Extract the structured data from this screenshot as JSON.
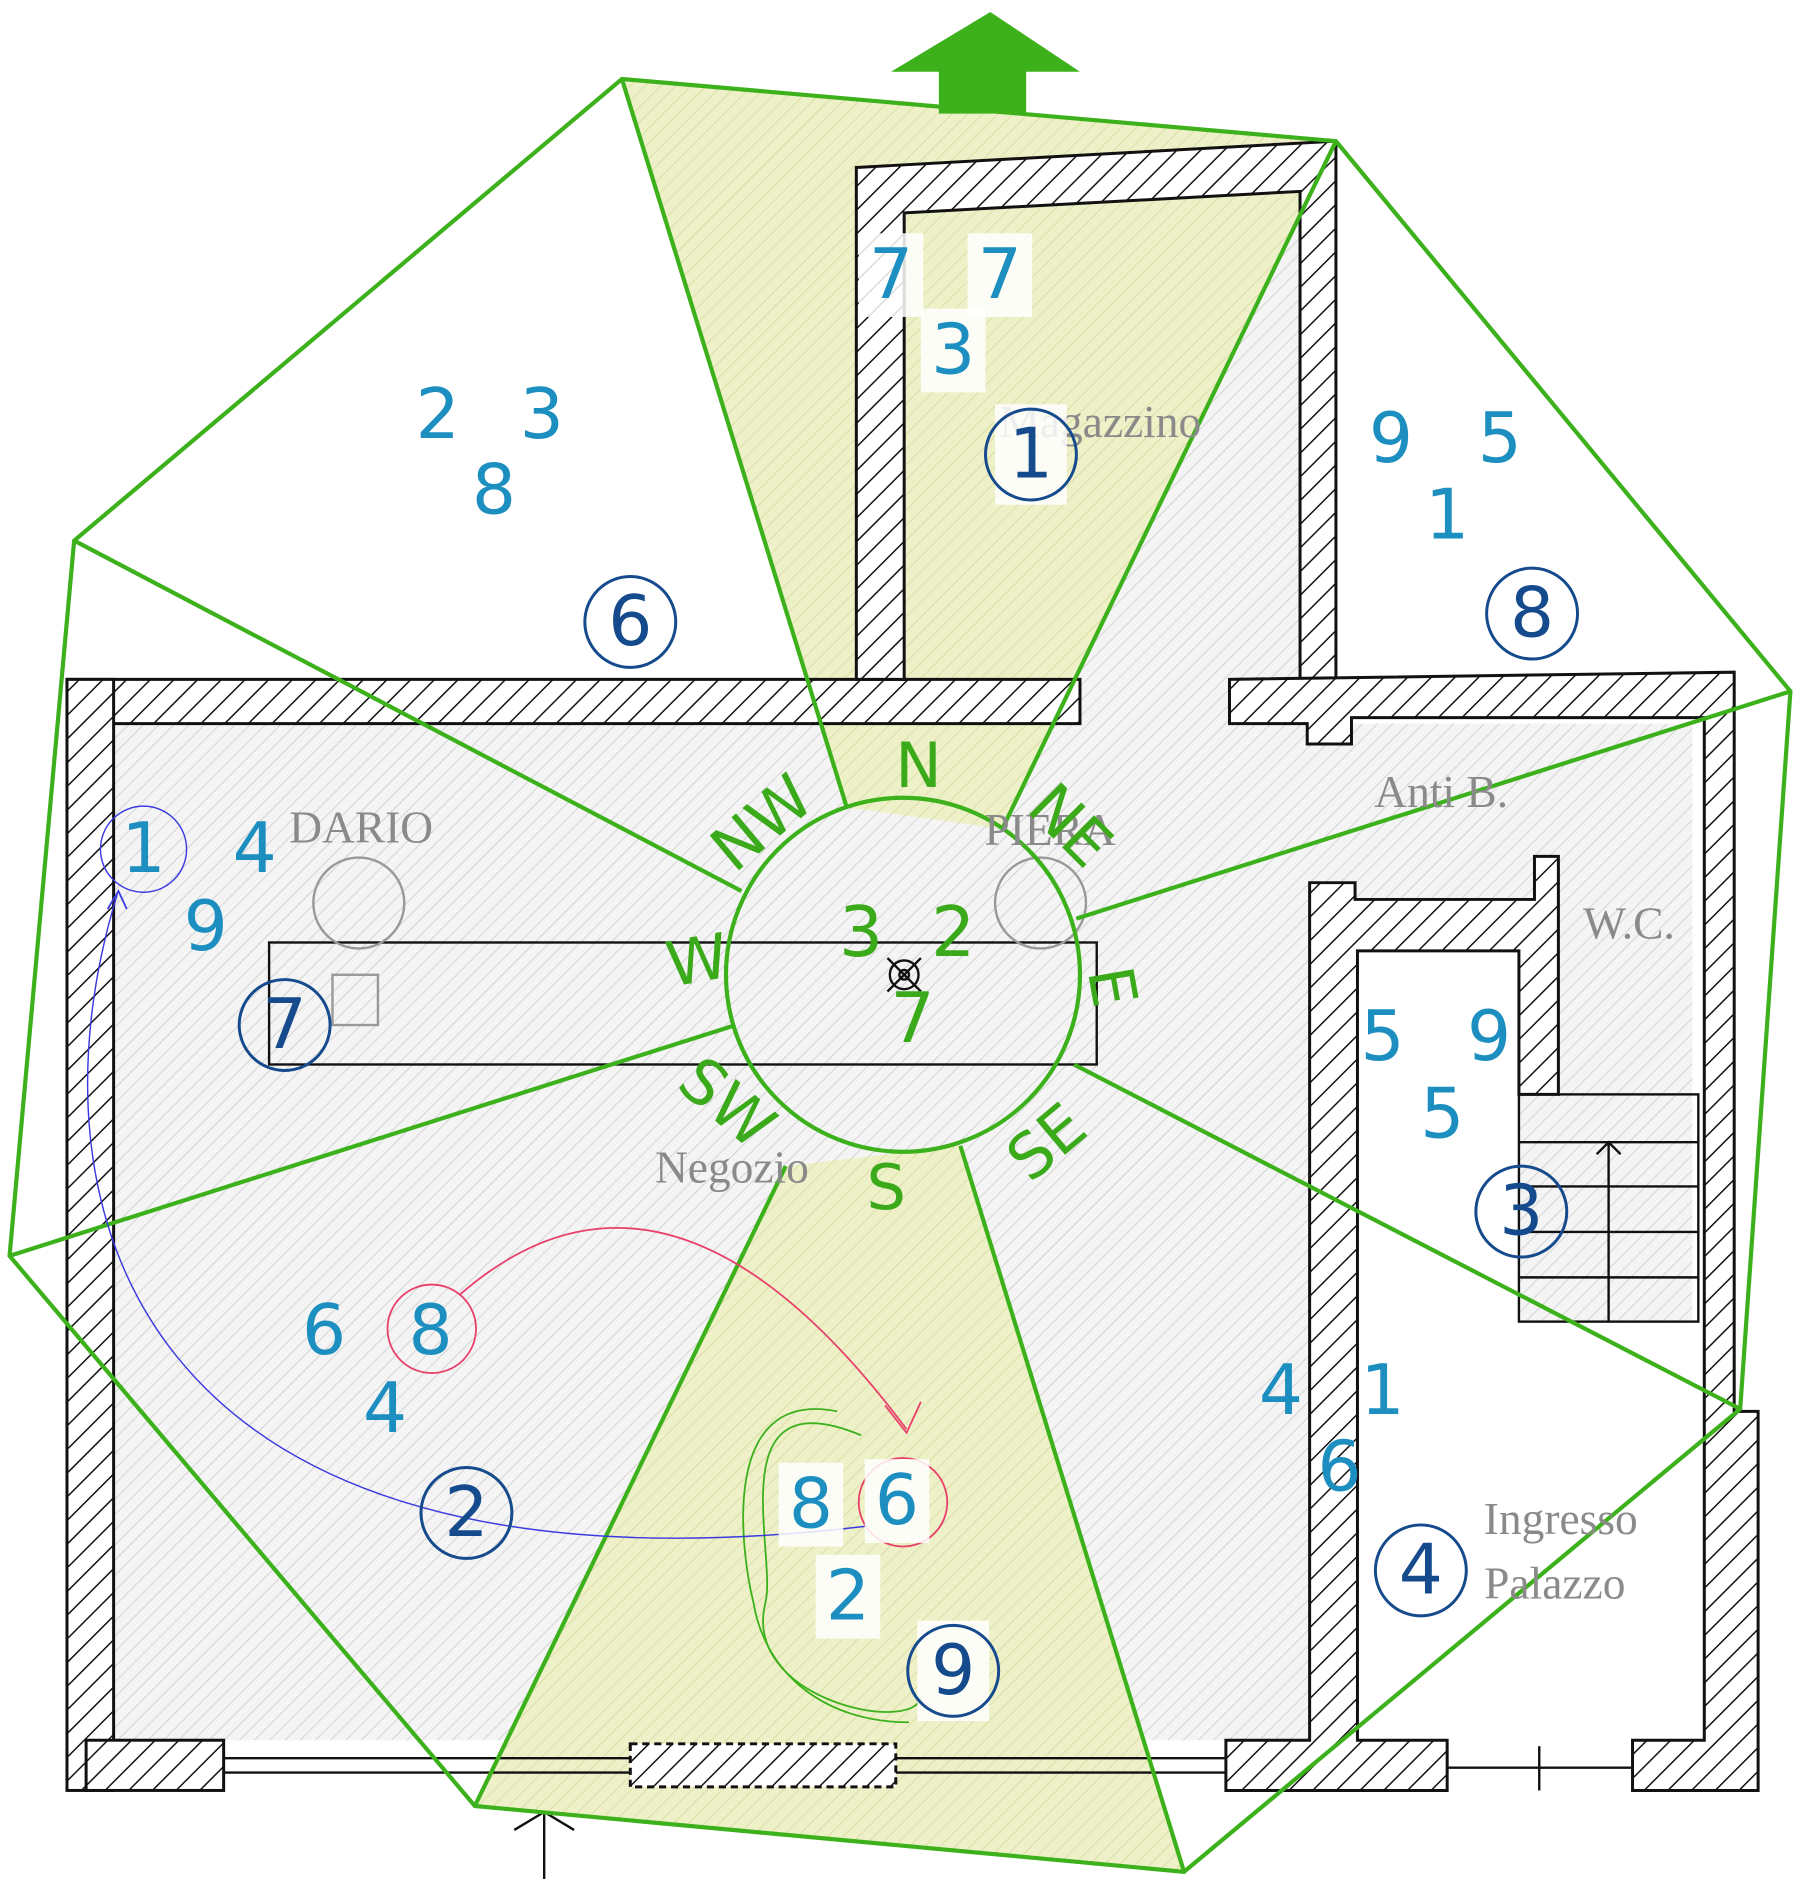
{
  "rooms": {
    "magazzino": "Magazzino",
    "dario": "DARIO",
    "piera": "PIERA",
    "anti_b": "Anti B.",
    "wc": "W.C.",
    "negozio": "Negozio",
    "ingresso": "Ingresso",
    "palazzo": "Palazzo"
  },
  "compass": [
    "N",
    "NE",
    "E",
    "SE",
    "S",
    "SW",
    "W",
    "NW"
  ],
  "sectors": {
    "n": {
      "period": 1,
      "stars": [
        7,
        7,
        3
      ]
    },
    "ne": {
      "period": 8,
      "stars": [
        9,
        5,
        1
      ]
    },
    "e": {
      "period": 3,
      "stars": [
        5,
        9,
        5
      ]
    },
    "se": {
      "period": 4,
      "stars": [
        4,
        1,
        6
      ]
    },
    "s": {
      "period": 9,
      "stars": [
        8,
        6,
        2
      ]
    },
    "sw": {
      "period": 2,
      "stars": [
        6,
        8,
        4
      ]
    },
    "w": {
      "period": 7,
      "stars": [
        1,
        4,
        9
      ]
    },
    "nw": {
      "period": 6,
      "stars": [
        2,
        3,
        8
      ]
    }
  },
  "center": {
    "stars": [
      3,
      2,
      7
    ]
  }
}
